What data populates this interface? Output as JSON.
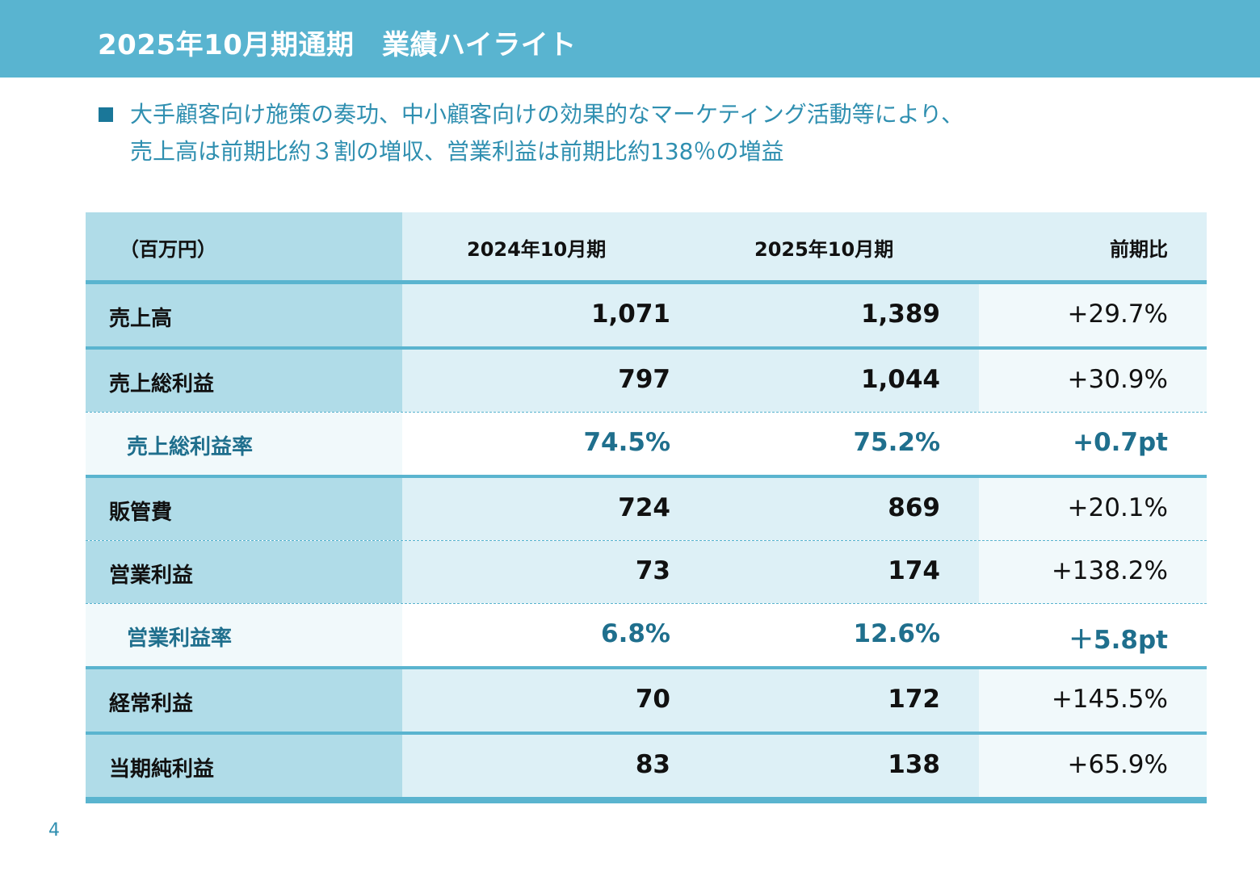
{
  "title": "2025年10月期通期　業績ハイライト",
  "summary": {
    "line1": "大手顧客向け施策の奏功、中小顧客向けの効果的なマーケティング活動等により、",
    "line2": "売上高は前期比約３割の増収、営業利益は前期比約138％の増益"
  },
  "table": {
    "header": {
      "unit": "（百万円）",
      "col1": "2024年10月期",
      "col2": "2025年10月期",
      "col3": "前期比"
    },
    "rows": [
      {
        "label": "売上高",
        "v2024": "1,071",
        "v2025": "1,389",
        "change": "+29.7%"
      },
      {
        "label": "売上総利益",
        "v2024": "797",
        "v2025": "1,044",
        "change": "+30.9%"
      },
      {
        "label": "売上総利益率",
        "v2024": "74.5%",
        "v2025": "75.2%",
        "change": "+0.7pt"
      },
      {
        "label": "販管費",
        "v2024": "724",
        "v2025": "869",
        "change": "+20.1%"
      },
      {
        "label": "営業利益",
        "v2024": "73",
        "v2025": "174",
        "change": "+138.2%"
      },
      {
        "label": "営業利益率",
        "v2024": "6.8%",
        "v2025": "12.6%",
        "change": "＋5.8pt"
      },
      {
        "label": "経常利益",
        "v2024": "70",
        "v2025": "172",
        "change": "+145.5%"
      },
      {
        "label": "当期純利益",
        "v2024": "83",
        "v2025": "138",
        "change": "+65.9%"
      }
    ]
  },
  "page_number": "4",
  "colors": {
    "title_bar": "#59b4d0",
    "accent_dark": "#1a7799",
    "label_column": "#b0dce8",
    "value_column": "#ddf0f6"
  }
}
